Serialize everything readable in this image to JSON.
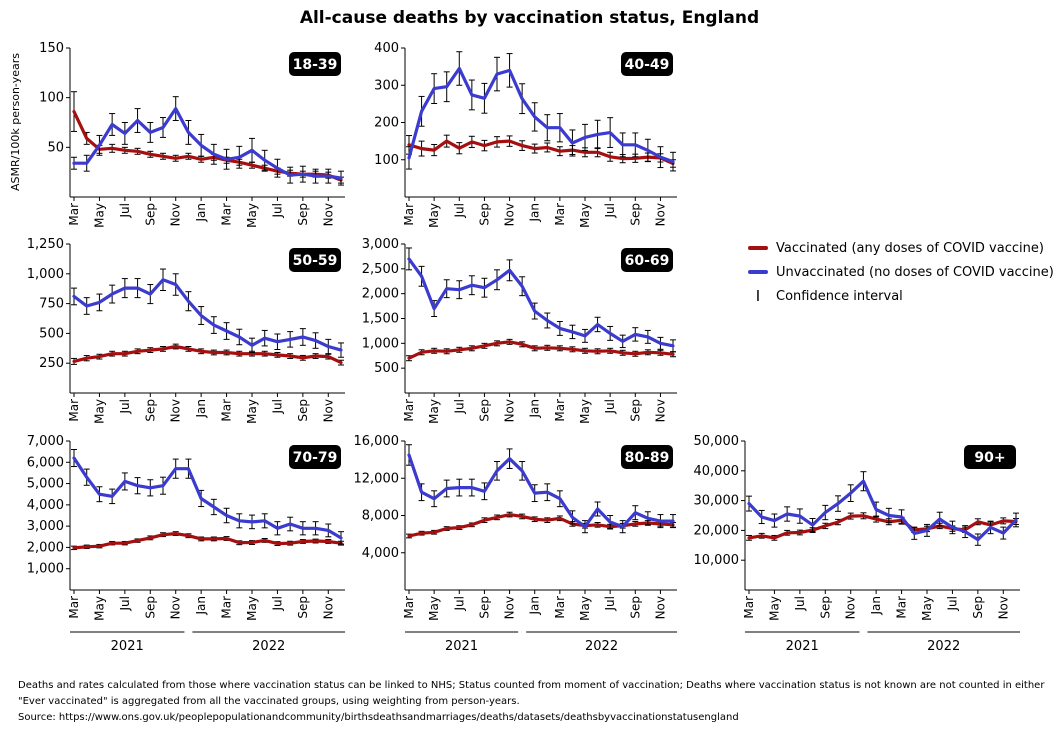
{
  "title": "All-cause deaths by vaccination status, England",
  "legend": {
    "vaccinated": "Vaccinated (any doses of COVID vaccine)",
    "unvaccinated": "Unvaccinated (no doses of COVID vaccine)",
    "ci": "Confidence interval",
    "ci_glyph": "I"
  },
  "colors": {
    "vaccinated": "#a50f0f",
    "unvaccinated": "#3b3bd0",
    "ci": "#000000"
  },
  "notes": {
    "line1": "Deaths and rates calculated from those where vaccination status can be linked to NHS; Status counted from moment  of vaccination; Deaths  where vaccination status is not known are not counted in either group",
    "line2": "\"Ever vaccinated\" is aggregated from all the vaccinated groups, using weighting from person-years.",
    "line3": "Source: https://www.ons.gov.uk/peoplepopulationandcommunity/birthsdeathsandmarriages/deaths/datasets/deathsbyvaccinationstatusengland"
  },
  "chart_data": {
    "type": "line",
    "title": "All-cause deaths by vaccination status, England",
    "ylabel": "ASMR/100k person-years",
    "x": [
      "Mar 2021",
      "Apr 2021",
      "May 2021",
      "Jun 2021",
      "Jul 2021",
      "Aug 2021",
      "Sep 2021",
      "Oct 2021",
      "Nov 2021",
      "Dec 2021",
      "Jan 2022",
      "Feb 2022",
      "Mar 2022",
      "Apr 2022",
      "May 2022",
      "Jun 2022",
      "Jul 2022",
      "Aug 2022",
      "Sep 2022",
      "Oct 2022",
      "Nov 2022",
      "Dec 2022"
    ],
    "month_ticks": [
      "Mar",
      "May",
      "Jul",
      "Sep",
      "Nov",
      "Jan",
      "Mar",
      "May",
      "Jul",
      "Sep",
      "Nov"
    ],
    "years": [
      "2021",
      "2022"
    ],
    "panels": [
      {
        "label": "18-39",
        "ylim": [
          0,
          150
        ],
        "yticks": [
          50,
          100,
          150
        ],
        "ytick_labels": [
          "50",
          "100",
          "150"
        ],
        "series": [
          {
            "name": "Vaccinated (any doses of COVID vaccine)",
            "values": [
              86,
              59,
              48,
              49,
              47,
              46,
              43,
              41,
              39,
              41,
              38,
              40,
              37,
              35,
              32,
              29,
              26,
              24,
              23,
              23,
              22,
              17
            ],
            "err": [
              20,
              6,
              4,
              4,
              3,
              3,
              3,
              3,
              3,
              3,
              3,
              3,
              3,
              3,
              3,
              3,
              3,
              3,
              3,
              3,
              3,
              3
            ]
          },
          {
            "name": "Unvaccinated (no doses of COVID vaccine)",
            "values": [
              34,
              34,
              52,
              73,
              64,
              77,
              65,
              70,
              89,
              65,
              52,
              43,
              38,
              40,
              47,
              37,
              29,
              22,
              23,
              21,
              21,
              19
            ],
            "err": [
              6,
              8,
              10,
              11,
              11,
              12,
              10,
              10,
              12,
              12,
              11,
              10,
              10,
              11,
              12,
              10,
              9,
              8,
              8,
              7,
              7,
              7
            ]
          }
        ]
      },
      {
        "label": "40-49",
        "ylim": [
          0,
          400
        ],
        "yticks": [
          100,
          200,
          300,
          400
        ],
        "ytick_labels": [
          "100",
          "200",
          "300",
          "400"
        ],
        "series": [
          {
            "name": "Vaccinated (any doses of COVID vaccine)",
            "values": [
              140,
              130,
              126,
              150,
              131,
              148,
              138,
              148,
              150,
              138,
              130,
              133,
              123,
              126,
              120,
              120,
              108,
              103,
              104,
              107,
              105,
              90
            ],
            "err": [
              25,
              20,
              15,
              16,
              15,
              15,
              14,
              14,
              14,
              13,
              12,
              12,
              12,
              12,
              12,
              12,
              12,
              11,
              11,
              11,
              11,
              10
            ]
          },
          {
            "name": "Unvaccinated (no doses of COVID vaccine)",
            "values": [
              105,
              230,
              291,
              296,
              345,
              274,
              265,
              330,
              340,
              264,
              215,
              186,
              186,
              145,
              160,
              168,
              173,
              140,
              140,
              125,
              107,
              95
            ],
            "err": [
              30,
              40,
              40,
              40,
              45,
              40,
              40,
              45,
              45,
              40,
              38,
              35,
              38,
              35,
              35,
              38,
              40,
              32,
              32,
              30,
              28,
              25
            ]
          }
        ]
      },
      {
        "label": "50-59",
        "ylim": [
          0,
          1250
        ],
        "yticks": [
          250,
          500,
          750,
          1000,
          1250
        ],
        "ytick_labels": [
          "250",
          "500",
          "750",
          "1,000",
          "1,250"
        ],
        "series": [
          {
            "name": "Vaccinated (any doses of COVID vaccine)",
            "values": [
              265,
              292,
              305,
              330,
              330,
              350,
              360,
              370,
              390,
              370,
              350,
              340,
              340,
              330,
              330,
              330,
              320,
              310,
              295,
              310,
              305,
              255
            ],
            "err": [
              25,
              22,
              20,
              20,
              20,
              20,
              20,
              20,
              20,
              20,
              20,
              20,
              20,
              20,
              20,
              20,
              20,
              20,
              20,
              20,
              20,
              20
            ]
          },
          {
            "name": "Unvaccinated (no doses of COVID vaccine)",
            "values": [
              810,
              730,
              760,
              830,
              880,
              880,
              830,
              950,
              910,
              770,
              650,
              570,
              520,
              470,
              400,
              460,
              430,
              450,
              470,
              440,
              390,
              360
            ],
            "err": [
              70,
              70,
              70,
              75,
              80,
              80,
              80,
              90,
              90,
              80,
              75,
              70,
              70,
              65,
              60,
              65,
              65,
              65,
              70,
              65,
              60,
              60
            ]
          }
        ]
      },
      {
        "label": "60-69",
        "ylim": [
          0,
          3000
        ],
        "yticks": [
          500,
          1000,
          1500,
          2000,
          2500,
          3000
        ],
        "ytick_labels": [
          "500",
          "1,000",
          "1,500",
          "2,000",
          "2,500",
          "3,000"
        ],
        "series": [
          {
            "name": "Vaccinated (any doses of COVID vaccine)",
            "values": [
              700,
              820,
              850,
              840,
              870,
              900,
              950,
              1000,
              1030,
              980,
              900,
              910,
              900,
              880,
              850,
              840,
              850,
              810,
              790,
              820,
              810,
              780
            ],
            "err": [
              50,
              50,
              50,
              50,
              50,
              50,
              50,
              50,
              50,
              50,
              50,
              50,
              50,
              50,
              50,
              50,
              50,
              50,
              50,
              50,
              50,
              50
            ]
          },
          {
            "name": "Unvaccinated (no doses of COVID vaccine)",
            "values": [
              2700,
              2350,
              1700,
              2100,
              2080,
              2170,
              2120,
              2280,
              2470,
              2150,
              1650,
              1460,
              1300,
              1230,
              1150,
              1380,
              1200,
              1040,
              1180,
              1130,
              1000,
              950
            ],
            "err": [
              220,
              200,
              160,
              180,
              180,
              190,
              190,
              200,
              210,
              190,
              160,
              150,
              140,
              135,
              130,
              145,
              140,
              125,
              135,
              130,
              120,
              120
            ]
          }
        ]
      },
      {
        "label": "70-79",
        "ylim": [
          0,
          7000
        ],
        "yticks": [
          1000,
          2000,
          3000,
          4000,
          5000,
          6000,
          7000
        ],
        "ytick_labels": [
          "1,000",
          "2,000",
          "3,000",
          "4,000",
          "5,000",
          "6,000",
          "7,000"
        ],
        "series": [
          {
            "name": "Vaccinated (any doses of COVID vaccine)",
            "values": [
              1980,
              2030,
              2060,
              2200,
              2200,
              2320,
              2450,
              2600,
              2650,
              2550,
              2400,
              2400,
              2420,
              2220,
              2230,
              2330,
              2180,
              2200,
              2280,
              2300,
              2280,
              2200
            ],
            "err": [
              80,
              80,
              80,
              80,
              80,
              80,
              90,
              90,
              90,
              90,
              90,
              90,
              90,
              90,
              90,
              90,
              90,
              90,
              90,
              90,
              90,
              90
            ]
          },
          {
            "name": "Unvaccinated (no doses of COVID vaccine)",
            "values": [
              6200,
              5300,
              4500,
              4400,
              5100,
              4900,
              4800,
              4900,
              5700,
              5700,
              4300,
              3900,
              3500,
              3250,
              3200,
              3250,
              2900,
              3100,
              2900,
              2900,
              2800,
              2450
            ],
            "err": [
              400,
              380,
              350,
              340,
              400,
              380,
              380,
              400,
              450,
              450,
              380,
              360,
              340,
              330,
              320,
              330,
              310,
              320,
              310,
              310,
              300,
              290
            ]
          }
        ]
      },
      {
        "label": "80-89",
        "ylim": [
          0,
          16000
        ],
        "yticks": [
          4000,
          8000,
          12000,
          16000
        ],
        "ytick_labels": [
          "4,000",
          "8,000",
          "12,000",
          "16,000"
        ],
        "series": [
          {
            "name": "Vaccinated (any doses of COVID vaccine)",
            "values": [
              5800,
              6100,
              6200,
              6600,
              6700,
              7000,
              7500,
              7800,
              8100,
              7900,
              7600,
              7500,
              7700,
              7100,
              6900,
              7000,
              6800,
              6900,
              7100,
              7200,
              7100,
              7000
            ],
            "err": [
              200,
              200,
              200,
              200,
              200,
              200,
              250,
              250,
              250,
              250,
              250,
              250,
              250,
              250,
              250,
              250,
              250,
              250,
              250,
              250,
              250,
              250
            ]
          },
          {
            "name": "Unvaccinated (no doses of COVID vaccine)",
            "values": [
              14500,
              10500,
              9800,
              10900,
              11000,
              11000,
              10600,
              12800,
              14100,
              12800,
              10400,
              10500,
              9800,
              7800,
              6800,
              8700,
              7300,
              6800,
              8300,
              7700,
              7400,
              7400
            ],
            "err": [
              1100,
              900,
              850,
              900,
              900,
              900,
              900,
              1000,
              1050,
              1000,
              900,
              900,
              850,
              700,
              650,
              750,
              700,
              650,
              750,
              700,
              700,
              700
            ]
          }
        ]
      },
      {
        "label": "90+",
        "ylim": [
          0,
          50000
        ],
        "yticks": [
          10000,
          20000,
          30000,
          40000,
          50000
        ],
        "ytick_labels": [
          "10,000",
          "20,000",
          "30,000",
          "40,000",
          "50,000"
        ],
        "series": [
          {
            "name": "Vaccinated (any doses of COVID vaccine)",
            "values": [
              17500,
              18200,
              17500,
              19200,
              19300,
              20100,
              21500,
              22800,
              24800,
              24900,
              23800,
              22900,
              23400,
              20200,
              20500,
              21500,
              20600,
              20200,
              22900,
              21800,
              23200,
              23000
            ],
            "err": [
              800,
              800,
              800,
              800,
              800,
              800,
              900,
              900,
              1000,
              1000,
              1000,
              1000,
              1000,
              900,
              900,
              900,
              900,
              900,
              1000,
              1000,
              1000,
              1000
            ]
          },
          {
            "name": "Unvaccinated (no doses of COVID vaccine)",
            "values": [
              29000,
              24500,
              23300,
              25500,
              24800,
              21800,
              26000,
              29000,
              32500,
              36500,
              27000,
              25000,
              24500,
              19000,
              20000,
              23800,
              21000,
              19600,
              16900,
              21000,
              19100,
              23500
            ],
            "err": [
              2500,
              2200,
              2200,
              2400,
              2400,
              2200,
              2400,
              2600,
              2800,
              3200,
              2500,
              2400,
              2400,
              2000,
              2000,
              2300,
              2100,
              2000,
              1900,
              2100,
              2000,
              2300
            ]
          }
        ]
      }
    ]
  }
}
